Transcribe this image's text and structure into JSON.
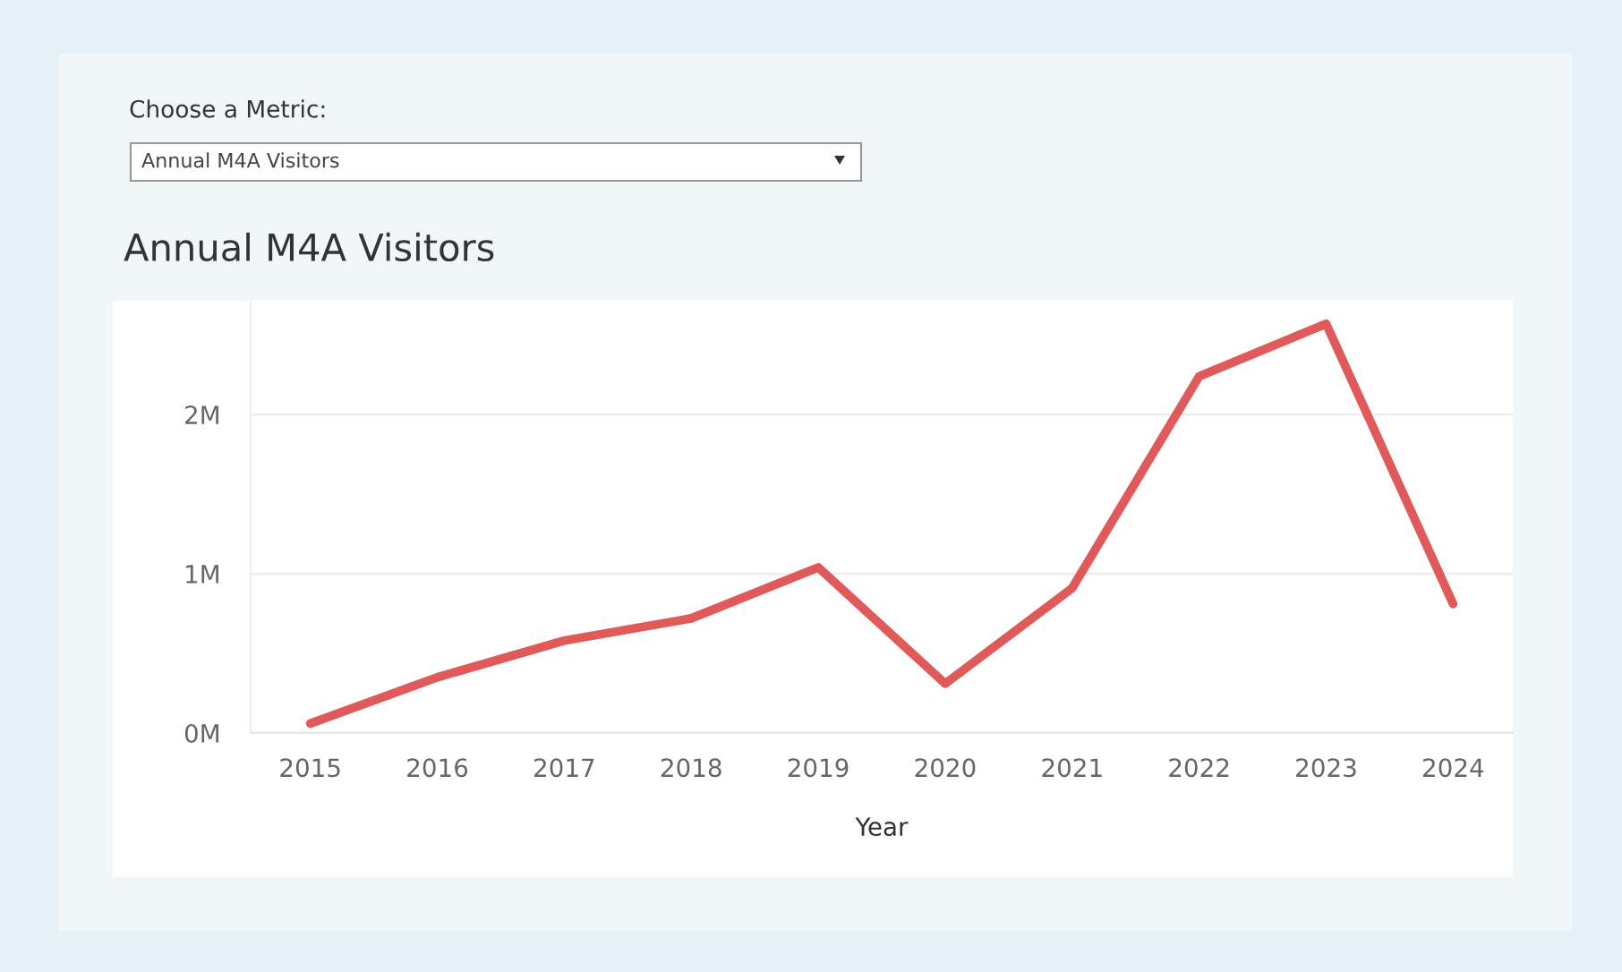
{
  "chart_data": {
    "type": "line",
    "title": "Annual M4A Visitors",
    "xlabel": "Year",
    "annotations": [
      "Choose a Metric:",
      "Annual M4A Visitors"
    ],
    "categories": [
      "2015",
      "2016",
      "2017",
      "2018",
      "2019",
      "2020",
      "2021",
      "2022",
      "2023",
      "2024"
    ],
    "series": [
      {
        "color": "#e05a5a",
        "values": [
          0.06,
          0.35,
          0.58,
          0.72,
          1.04,
          0.31,
          0.91,
          2.24,
          2.57,
          0.81
        ]
      }
    ],
    "ylim": [
      0,
      2.72
    ],
    "yticks": [
      {
        "value": 0,
        "label": "0M"
      },
      {
        "value": 1,
        "label": "1M"
      },
      {
        "value": 2,
        "label": "2M"
      }
    ],
    "grid": "y",
    "marker": "none",
    "line_style": "solid"
  }
}
